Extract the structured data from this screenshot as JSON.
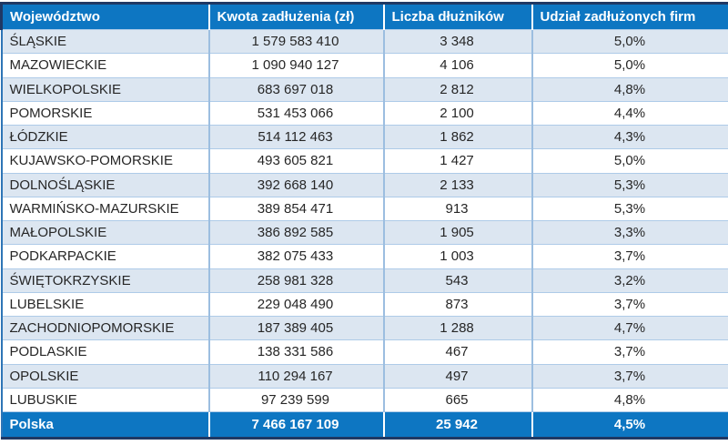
{
  "colors": {
    "accent_blue": "#0d76c2",
    "dark_navy_border": "#1f3864",
    "alt_row_blue": "#dce6f1",
    "grid_line_blue": "#9cbee0",
    "data_text": "#262626",
    "header_text": "#ffffff"
  },
  "table": {
    "columns": [
      "Województwo",
      "Kwota zadłużenia (zł)",
      "Liczba dłużników",
      "Udział zadłużonych firm"
    ],
    "rows": [
      [
        "ŚLĄSKIE",
        "1 579 583 410",
        "3 348",
        "5,0%"
      ],
      [
        "MAZOWIECKIE",
        "1 090 940 127",
        "4 106",
        "5,0%"
      ],
      [
        "WIELKOPOLSKIE",
        "683 697 018",
        "2 812",
        "4,8%"
      ],
      [
        "POMORSKIE",
        "531 453 066",
        "2 100",
        "4,4%"
      ],
      [
        "ŁÓDZKIE",
        "514 112 463",
        "1 862",
        "4,3%"
      ],
      [
        "KUJAWSKO-POMORSKIE",
        "493 605 821",
        "1 427",
        "5,0%"
      ],
      [
        "DOLNOŚLĄSKIE",
        "392 668 140",
        "2 133",
        "5,3%"
      ],
      [
        "WARMIŃSKO-MAZURSKIE",
        "389 854 471",
        "913",
        "5,3%"
      ],
      [
        "MAŁOPOLSKIE",
        "386 892 585",
        "1 905",
        "3,3%"
      ],
      [
        "PODKARPACKIE",
        "382 075 433",
        "1 003",
        "3,7%"
      ],
      [
        "ŚWIĘTOKRZYSKIE",
        "258 981 328",
        "543",
        "3,2%"
      ],
      [
        "LUBELSKIE",
        "229 048 490",
        "873",
        "3,7%"
      ],
      [
        "ZACHODNIOPOMORSKIE",
        "187 389 405",
        "1 288",
        "4,7%"
      ],
      [
        "PODLASKIE",
        "138 331 586",
        "467",
        "3,7%"
      ],
      [
        "OPOLSKIE",
        "110 294 167",
        "497",
        "3,7%"
      ],
      [
        "LUBUSKIE",
        "97 239 599",
        "665",
        "4,8%"
      ]
    ],
    "footer": [
      "Polska",
      "7 466 167 109",
      "25 942",
      "4,5%"
    ]
  },
  "chart_data": {
    "type": "table",
    "columns": [
      "Województwo",
      "Kwota zadłużenia (zł)",
      "Liczba dłużników",
      "Udział zadłużonych firm"
    ],
    "rows": [
      {
        "wojewodztwo": "ŚLĄSKIE",
        "kwota_zadluzenia_zl": 1579583410,
        "liczba_dluznikow": 3348,
        "udzial_zadluzonych_firm_pct": 5.0
      },
      {
        "wojewodztwo": "MAZOWIECKIE",
        "kwota_zadluzenia_zl": 1090940127,
        "liczba_dluznikow": 4106,
        "udzial_zadluzonych_firm_pct": 5.0
      },
      {
        "wojewodztwo": "WIELKOPOLSKIE",
        "kwota_zadluzenia_zl": 683697018,
        "liczba_dluznikow": 2812,
        "udzial_zadluzonych_firm_pct": 4.8
      },
      {
        "wojewodztwo": "POMORSKIE",
        "kwota_zadluzenia_zl": 531453066,
        "liczba_dluznikow": 2100,
        "udzial_zadluzonych_firm_pct": 4.4
      },
      {
        "wojewodztwo": "ŁÓDZKIE",
        "kwota_zadluzenia_zl": 514112463,
        "liczba_dluznikow": 1862,
        "udzial_zadluzonych_firm_pct": 4.3
      },
      {
        "wojewodztwo": "KUJAWSKO-POMORSKIE",
        "kwota_zadluzenia_zl": 493605821,
        "liczba_dluznikow": 1427,
        "udzial_zadluzonych_firm_pct": 5.0
      },
      {
        "wojewodztwo": "DOLNOŚLĄSKIE",
        "kwota_zadluzenia_zl": 392668140,
        "liczba_dluznikow": 2133,
        "udzial_zadluzonych_firm_pct": 5.3
      },
      {
        "wojewodztwo": "WARMIŃSKO-MAZURSKIE",
        "kwota_zadluzenia_zl": 389854471,
        "liczba_dluznikow": 913,
        "udzial_zadluzonych_firm_pct": 5.3
      },
      {
        "wojewodztwo": "MAŁOPOLSKIE",
        "kwota_zadluzenia_zl": 386892585,
        "liczba_dluznikow": 1905,
        "udzial_zadluzonych_firm_pct": 3.3
      },
      {
        "wojewodztwo": "PODKARPACKIE",
        "kwota_zadluzenia_zl": 382075433,
        "liczba_dluznikow": 1003,
        "udzial_zadluzonych_firm_pct": 3.7
      },
      {
        "wojewodztwo": "ŚWIĘTOKRZYSKIE",
        "kwota_zadluzenia_zl": 258981328,
        "liczba_dluznikow": 543,
        "udzial_zadluzonych_firm_pct": 3.2
      },
      {
        "wojewodztwo": "LUBELSKIE",
        "kwota_zadluzenia_zl": 229048490,
        "liczba_dluznikow": 873,
        "udzial_zadluzonych_firm_pct": 3.7
      },
      {
        "wojewodztwo": "ZACHODNIOPOMORSKIE",
        "kwota_zadluzenia_zl": 187389405,
        "liczba_dluznikow": 1288,
        "udzial_zadluzonych_firm_pct": 4.7
      },
      {
        "wojewodztwo": "PODLASKIE",
        "kwota_zadluzenia_zl": 138331586,
        "liczba_dluznikow": 467,
        "udzial_zadluzonych_firm_pct": 3.7
      },
      {
        "wojewodztwo": "OPOLSKIE",
        "kwota_zadluzenia_zl": 110294167,
        "liczba_dluznikow": 497,
        "udzial_zadluzonych_firm_pct": 3.7
      },
      {
        "wojewodztwo": "LUBUSKIE",
        "kwota_zadluzenia_zl": 97239599,
        "liczba_dluznikow": 665,
        "udzial_zadluzonych_firm_pct": 4.8
      }
    ],
    "total_row": {
      "wojewodztwo": "Polska",
      "kwota_zadluzenia_zl": 7466167109,
      "liczba_dluznikow": 25942,
      "udzial_zadluzonych_firm_pct": 4.5
    },
    "layout": {
      "zebra_striping": true,
      "header_position": "top",
      "total_position": "bottom"
    }
  }
}
